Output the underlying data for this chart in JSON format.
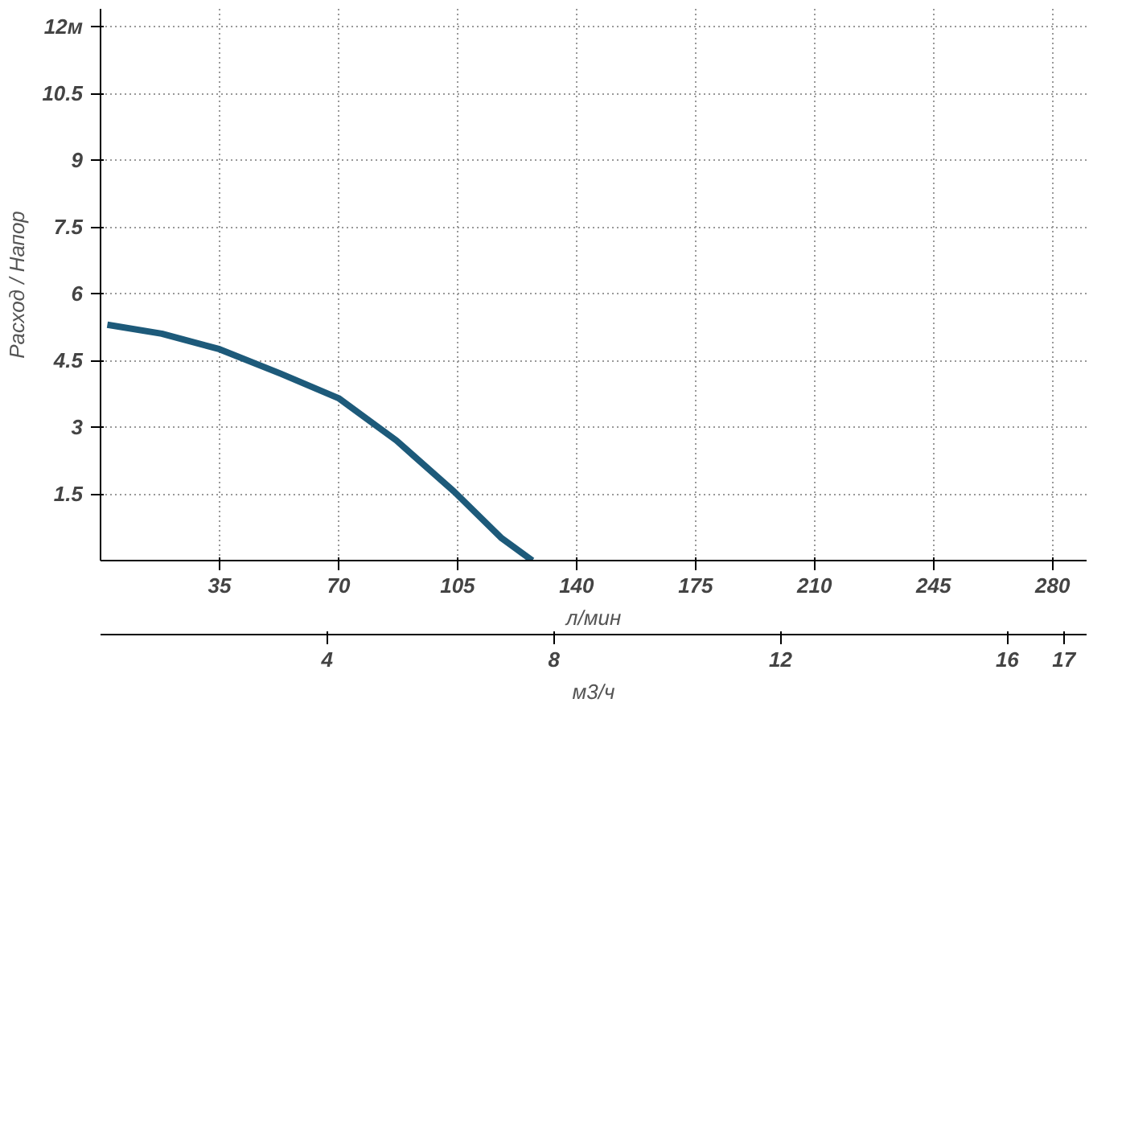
{
  "chart_data": {
    "type": "line",
    "ylabel": "Расход / Напор",
    "xlabel": "л/мин",
    "x2label": "м3/ч",
    "x": [
      2,
      18,
      35,
      53,
      70,
      87,
      104,
      118,
      127
    ],
    "series": [
      {
        "color": "#1d5a7a",
        "values": [
          5.3,
          5.1,
          4.75,
          4.2,
          3.65,
          2.7,
          1.55,
          0.5,
          0
        ]
      }
    ],
    "xlim": [
      0,
      290
    ],
    "xticks": [
      35,
      70,
      105,
      140,
      175,
      210,
      245,
      280
    ],
    "x2lim": [
      0,
      17.4
    ],
    "x2ticks": [
      4,
      8,
      12,
      16,
      17
    ],
    "ylim": [
      0,
      12.4
    ],
    "yticks": [
      1.5,
      3,
      4.5,
      6,
      7.5,
      9,
      10.5,
      {
        "value": 12,
        "label": "12м"
      }
    ],
    "grid": true,
    "line_style": "solid",
    "marker": "none"
  }
}
